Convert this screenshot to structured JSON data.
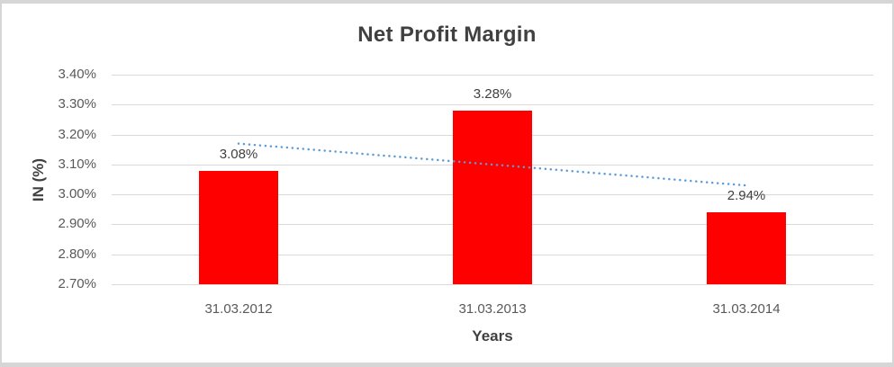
{
  "window": {
    "background_color": "#FFFFFF",
    "border_color": "#D6D6D6"
  },
  "chart_data": {
    "type": "bar",
    "title": "Net Profit Margin",
    "xlabel": "Years",
    "ylabel": "IN (%)",
    "categories": [
      "31.03.2012",
      "31.03.2013",
      "31.03.2014"
    ],
    "values": [
      3.08,
      3.28,
      2.94
    ],
    "value_labels": [
      "3.08%",
      "3.28%",
      "2.94%"
    ],
    "ylim": [
      2.7,
      3.4
    ],
    "yticks": [
      {
        "value": 3.4,
        "label": "3.40%"
      },
      {
        "value": 3.3,
        "label": "3.30%"
      },
      {
        "value": 3.2,
        "label": "3.20%"
      },
      {
        "value": 3.1,
        "label": "3.10%"
      },
      {
        "value": 3.0,
        "label": "3.00%"
      },
      {
        "value": 2.9,
        "label": "2.90%"
      },
      {
        "value": 2.8,
        "label": "2.80%"
      },
      {
        "value": 2.7,
        "label": "2.70%"
      }
    ],
    "grid": "horizontal",
    "legend": "none",
    "bar_color": "#FF0000",
    "gridline_color": "#D9D9D9",
    "title_color": "#404040",
    "tick_color": "#595959",
    "trendline": {
      "type": "linear",
      "style": "dotted",
      "color": "#5B9BD5",
      "start_value": 3.17,
      "end_value": 3.03
    }
  }
}
